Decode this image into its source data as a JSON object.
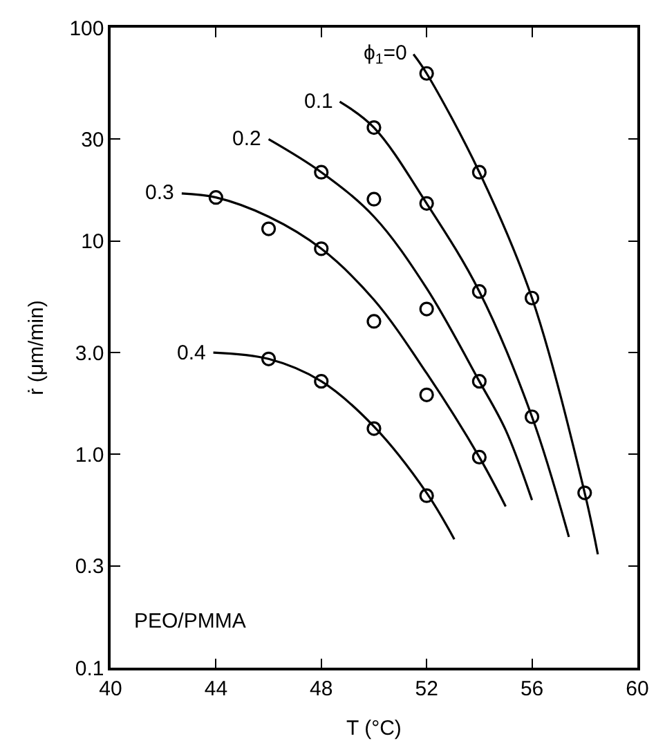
{
  "chart_data": {
    "type": "scatter",
    "xlabel": "T (°C)",
    "ylabel": "ṙ (μm/min)",
    "xlim": [
      40,
      60
    ],
    "xticks": [
      40,
      44,
      48,
      52,
      56,
      60
    ],
    "ylim": [
      0.1,
      100
    ],
    "yticks": [
      0.1,
      0.3,
      {
        "value": 1,
        "label": "1.0"
      },
      {
        "value": 3,
        "label": "3.0"
      },
      10,
      30,
      100
    ],
    "log": true,
    "marker": "circle",
    "annotations": [
      "PEO/PMMA"
    ],
    "series": [
      {
        "color": "#000000",
        "x": [
          52,
          54,
          56,
          58
        ],
        "values": [
          61,
          21,
          5.4,
          0.66
        ]
      },
      {
        "color": "#000000",
        "x": [
          50,
          52,
          54,
          56
        ],
        "values": [
          34,
          15,
          5.8,
          1.5
        ]
      },
      {
        "color": "#000000",
        "x": [
          48,
          50,
          52,
          54
        ],
        "values": [
          21,
          15.7,
          4.8,
          2.2
        ]
      },
      {
        "color": "#000000",
        "x": [
          44,
          46,
          48,
          50,
          52,
          54
        ],
        "values": [
          16,
          11.4,
          9.2,
          4.2,
          1.9,
          0.97
        ]
      },
      {
        "color": "#000000",
        "x": [
          46,
          48,
          50,
          52
        ],
        "values": [
          2.8,
          2.2,
          1.32,
          0.64
        ]
      },
      {
        "type": "line",
        "marker": "none",
        "name": "ϕ$_{1}$=0",
        "color": "#000000",
        "x": [
          51.5,
          52,
          54,
          56,
          58,
          58.5
        ],
        "values": [
          75,
          61,
          21,
          5.4,
          0.66,
          0.34
        ]
      },
      {
        "type": "line",
        "marker": "none",
        "name": "0.1",
        "color": "#000000",
        "x": [
          48.7,
          50,
          52,
          54,
          56,
          57.4
        ],
        "values": [
          45,
          34,
          15,
          5.8,
          1.5,
          0.41
        ]
      },
      {
        "type": "line",
        "marker": "none",
        "name": "0.2",
        "color": "#000000",
        "x": [
          46,
          48,
          50,
          52,
          54,
          55,
          56
        ],
        "values": [
          30,
          21,
          13,
          6,
          2.2,
          1.3,
          0.61
        ]
      },
      {
        "type": "line",
        "marker": "none",
        "name": "0.3",
        "color": "#000000",
        "x": [
          42.7,
          44,
          46,
          48,
          50,
          52,
          54,
          55
        ],
        "values": [
          16.7,
          16,
          13,
          9.2,
          5.3,
          2.4,
          0.97,
          0.57
        ]
      },
      {
        "type": "line",
        "marker": "none",
        "name": "0.4",
        "color": "#000000",
        "x": [
          43.9,
          46,
          48,
          50,
          52,
          53.05
        ],
        "values": [
          3.0,
          2.8,
          2.2,
          1.35,
          0.66,
          0.4
        ]
      }
    ]
  }
}
